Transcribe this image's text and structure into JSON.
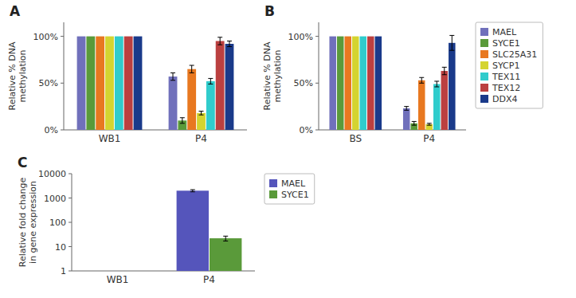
{
  "chart_data": [
    {
      "type": "bar",
      "title": "A",
      "categories": [
        "WB1",
        "P4"
      ],
      "series": [
        {
          "color": "#7070BB",
          "values": [
            100,
            57
          ],
          "errors": [
            null,
            4
          ]
        },
        {
          "color": "#5A9A3A",
          "values": [
            100,
            10
          ],
          "errors": [
            null,
            3
          ]
        },
        {
          "color": "#E87820",
          "values": [
            100,
            65
          ],
          "errors": [
            null,
            4
          ]
        },
        {
          "color": "#D4D430",
          "values": [
            100,
            18
          ],
          "errors": [
            null,
            2
          ]
        },
        {
          "color": "#30CCCC",
          "values": [
            100,
            52
          ],
          "errors": [
            null,
            3
          ]
        },
        {
          "color": "#BB4040",
          "values": [
            100,
            95
          ],
          "errors": [
            null,
            4
          ]
        },
        {
          "color": "#1A3A8A",
          "values": [
            100,
            92
          ],
          "errors": [
            null,
            3
          ]
        }
      ],
      "ylabel": "Relative % DNA\nmethylation",
      "ylim": [
        0,
        115
      ],
      "yticks": [
        {
          "value": 0,
          "label": "0%"
        },
        {
          "value": 50,
          "label": "50%"
        },
        {
          "value": 100,
          "label": "100%"
        }
      ]
    },
    {
      "type": "bar",
      "title": "B",
      "categories": [
        "BS",
        "P4"
      ],
      "series": [
        {
          "name": "MAEL",
          "color": "#7070BB",
          "values": [
            100,
            23
          ],
          "errors": [
            null,
            2
          ]
        },
        {
          "name": "SYCE1",
          "color": "#5A9A3A",
          "values": [
            100,
            7
          ],
          "errors": [
            null,
            2
          ]
        },
        {
          "name": "SLC25A31",
          "color": "#E87820",
          "values": [
            100,
            53
          ],
          "errors": [
            null,
            3
          ]
        },
        {
          "name": "SYCP1",
          "color": "#D4D430",
          "values": [
            100,
            6
          ],
          "errors": [
            null,
            1
          ]
        },
        {
          "name": "TEX11",
          "color": "#30CCCC",
          "values": [
            100,
            49
          ],
          "errors": [
            null,
            3
          ]
        },
        {
          "name": "TEX12",
          "color": "#BB4040",
          "values": [
            100,
            63
          ],
          "errors": [
            null,
            4
          ]
        },
        {
          "name": "DDX4",
          "color": "#1A3A8A",
          "values": [
            100,
            93
          ],
          "errors": [
            null,
            8
          ]
        }
      ],
      "ylabel": "Relative % DNA\nmethylation",
      "ylim": [
        0,
        115
      ],
      "yticks": [
        {
          "value": 0,
          "label": "0%"
        },
        {
          "value": 50,
          "label": "50%"
        },
        {
          "value": 100,
          "label": "100%"
        }
      ],
      "legend": "right"
    },
    {
      "type": "bar",
      "title": "C",
      "categories": [
        "WB1",
        "P4"
      ],
      "series": [
        {
          "name": "MAEL",
          "color": "#5555BB",
          "values": [
            1,
            2000
          ],
          "errors": [
            null,
            200
          ]
        },
        {
          "name": "SYCE1",
          "color": "#5A9A3A",
          "values": [
            1,
            22
          ],
          "errors": [
            null,
            5
          ]
        }
      ],
      "ylabel": "Relative fold change\nin gene expression",
      "log": "y",
      "ylim": [
        1,
        10000
      ],
      "yticks": [
        1,
        10,
        100,
        1000,
        10000
      ],
      "legend": "right"
    }
  ]
}
